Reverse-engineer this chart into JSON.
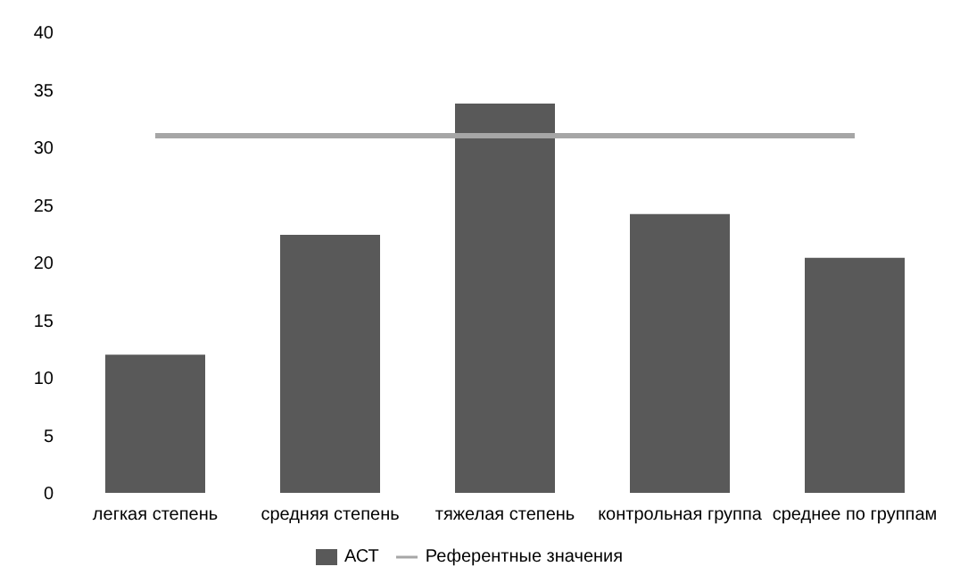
{
  "chart_data": {
    "type": "bar",
    "categories": [
      "легкая степень",
      "средняя степень",
      "тяжелая степень",
      "контрольная группа",
      "среднее по группам"
    ],
    "series": [
      {
        "name": "АСТ",
        "color": "#595959",
        "values": [
          12,
          22.4,
          33.8,
          24.2,
          20.4
        ]
      },
      {
        "name": "Референтные значения",
        "type": "line",
        "color": "#a6a6a6",
        "values": [
          31,
          31,
          31,
          31,
          31
        ]
      }
    ],
    "ylim": [
      0,
      40
    ],
    "yticks": [
      0,
      5,
      10,
      15,
      20,
      25,
      30,
      35,
      40
    ],
    "grid": false,
    "legend": "bottom",
    "marker": "none"
  }
}
